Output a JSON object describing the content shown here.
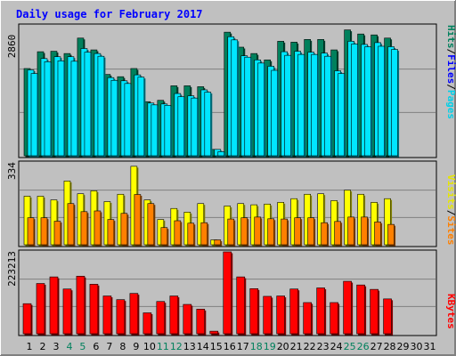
{
  "title": "Daily usage for February 2017",
  "colors": {
    "hits": "#00805c",
    "files": "#00e6ff",
    "pages": "#00e6ff",
    "visits": "#ffff00",
    "sites": "#ff8000",
    "kbytes": "#ff0000",
    "weekend": "#00805c",
    "weekday": "#000000",
    "title": "#0000ff"
  },
  "panel_labels": {
    "top": [
      "Pages",
      "Files",
      "Hits"
    ],
    "middle": [
      "Sites",
      "Visits"
    ],
    "bottom": [
      "KBytes"
    ],
    "separator": "/"
  },
  "chart_data": [
    {
      "type": "bar",
      "name": "hits-files-pages",
      "ymax_label": "2860",
      "ylim": [
        0,
        2860
      ],
      "categories": [
        "1",
        "2",
        "3",
        "4",
        "5",
        "6",
        "7",
        "8",
        "9",
        "10",
        "11",
        "12",
        "13",
        "14",
        "15",
        "16",
        "17",
        "18",
        "19",
        "20",
        "21",
        "22",
        "23",
        "24",
        "25",
        "26",
        "27",
        "28",
        "29",
        "30",
        "31"
      ],
      "weekend_days": [
        "4",
        "5",
        "11",
        "12",
        "18",
        "19",
        "25",
        "26"
      ],
      "series": [
        {
          "name": "Hits",
          "values": [
            1920,
            2290,
            2300,
            2250,
            2590,
            2330,
            1790,
            1740,
            1920,
            1190,
            1220,
            1540,
            1540,
            1520,
            140,
            2720,
            2390,
            2250,
            2110,
            2520,
            2500,
            2560,
            2560,
            2330,
            2770,
            2680,
            2660,
            2590,
            null,
            null,
            null
          ]
        },
        {
          "name": "Files",
          "values": [
            1890,
            2140,
            2180,
            2180,
            2360,
            2250,
            1720,
            1650,
            1780,
            1160,
            1140,
            1370,
            1320,
            1450,
            140,
            2620,
            2200,
            2110,
            1970,
            2290,
            2300,
            2280,
            2260,
            1870,
            2520,
            2450,
            2490,
            2400,
            null,
            null,
            null
          ]
        },
        {
          "name": "Pages",
          "values": [
            1810,
            2070,
            2090,
            2080,
            2280,
            2190,
            1660,
            1590,
            1730,
            1120,
            1110,
            1300,
            1270,
            1400,
            90,
            2550,
            2170,
            2040,
            1880,
            2210,
            2230,
            2230,
            2190,
            1810,
            2460,
            2400,
            2410,
            2340,
            null,
            null,
            null
          ]
        }
      ]
    },
    {
      "type": "bar",
      "name": "visits-sites",
      "ymax_label": "334",
      "ylim": [
        0,
        334
      ],
      "categories": [
        "1",
        "2",
        "3",
        "4",
        "5",
        "6",
        "7",
        "8",
        "9",
        "10",
        "11",
        "12",
        "13",
        "14",
        "15",
        "16",
        "17",
        "18",
        "19",
        "20",
        "21",
        "22",
        "23",
        "24",
        "25",
        "26",
        "27",
        "28",
        "29",
        "30",
        "31"
      ],
      "series": [
        {
          "name": "Visits",
          "values": [
            198,
            198,
            183,
            260,
            208,
            220,
            176,
            206,
            320,
            183,
            103,
            148,
            133,
            168,
            20,
            158,
            168,
            163,
            166,
            173,
            188,
            206,
            208,
            180,
            223,
            206,
            173,
            188,
            null,
            null,
            null
          ]
        },
        {
          "name": "Sites",
          "values": [
            110,
            110,
            96,
            168,
            135,
            138,
            103,
            128,
            205,
            168,
            70,
            98,
            88,
            90,
            20,
            105,
            110,
            113,
            106,
            105,
            110,
            110,
            90,
            95,
            113,
            113,
            93,
            83,
            null,
            null,
            null
          ]
        }
      ]
    },
    {
      "type": "bar",
      "name": "kbytes",
      "ymax_label": "223213",
      "ylim": [
        0,
        223213
      ],
      "categories": [
        "1",
        "2",
        "3",
        "4",
        "5",
        "6",
        "7",
        "8",
        "9",
        "10",
        "11",
        "12",
        "13",
        "14",
        "15",
        "16",
        "17",
        "18",
        "19",
        "20",
        "21",
        "22",
        "23",
        "24",
        "25",
        "26",
        "27",
        "28",
        "29",
        "30",
        "31"
      ],
      "series": [
        {
          "name": "KBytes",
          "values": [
            82000,
            137000,
            155000,
            122000,
            157000,
            135000,
            103000,
            93000,
            110000,
            57000,
            88000,
            103000,
            80000,
            67000,
            7000,
            223213,
            155000,
            123000,
            102000,
            103000,
            122000,
            85000,
            125000,
            85000,
            143000,
            133000,
            121000,
            95000,
            null,
            null,
            null
          ]
        }
      ]
    }
  ]
}
